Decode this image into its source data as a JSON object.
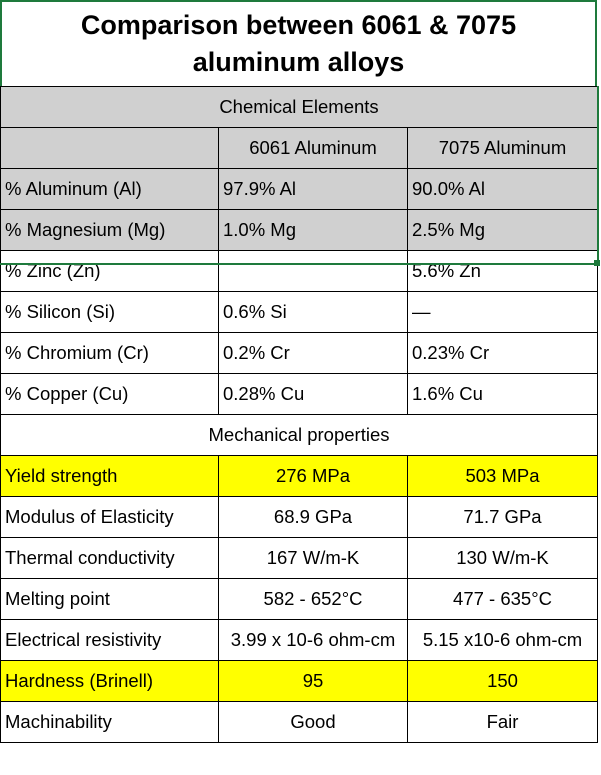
{
  "title": "Comparison between 6061 & 7075 aluminum alloys",
  "chemical": {
    "section_label": "Chemical Elements",
    "headers": [
      "",
      "6061 Aluminum",
      "7075 Aluminum"
    ],
    "rows": [
      [
        "% Aluminum (Al)",
        "97.9% Al",
        "90.0% Al"
      ],
      [
        "% Magnesium (Mg)",
        "1.0% Mg",
        "2.5% Mg"
      ],
      [
        "% Zinc (Zn)",
        "",
        "5.6% Zn"
      ],
      [
        "% Silicon (Si)",
        "0.6% Si",
        "—"
      ],
      [
        "% Chromium (Cr)",
        "0.2% Cr",
        "0.23% Cr"
      ],
      [
        "% Copper (Cu)",
        "0.28% Cu",
        "1.6% Cu"
      ]
    ]
  },
  "mechanical": {
    "section_label": "Mechanical properties",
    "rows": [
      [
        "Yield strength",
        "276 MPa",
        "503 MPa"
      ],
      [
        "Modulus of Elasticity",
        "68.9 GPa",
        "71.7 GPa"
      ],
      [
        "Thermal conductivity",
        "167 W/m-K",
        "130 W/m-K"
      ],
      [
        "Melting point",
        "582 - 652°C",
        "477 - 635°C"
      ],
      [
        "Electrical resistivity",
        "3.99 x 10-6 ohm-cm",
        "5.15 x10-6 ohm-cm"
      ],
      [
        "Hardness (Brinell)",
        "95",
        "150"
      ],
      [
        "Machinability",
        "Good",
        "Fair"
      ]
    ]
  },
  "colors": {
    "selection_grey": "#d0d0d0",
    "highlight_yellow": "#ffff00",
    "selection_border_green": "#1e7a3c"
  }
}
